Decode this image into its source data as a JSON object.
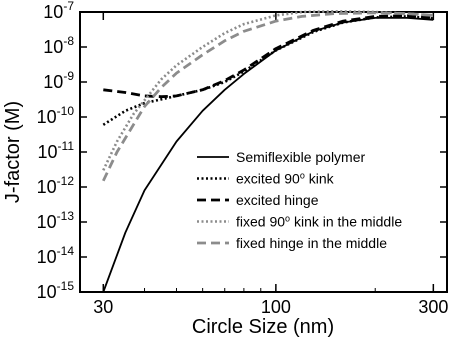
{
  "chart_data": {
    "type": "line",
    "xlabel": "Circle Size (nm)",
    "ylabel": "J-factor (M)",
    "xscale": "log",
    "yscale": "log",
    "xlim": [
      25.5,
      330
    ],
    "ylim": [
      1e-15,
      1e-07
    ],
    "x_ticks": [
      {
        "value": 30,
        "label": "30"
      },
      {
        "value": 100,
        "label": "100"
      },
      {
        "value": 300,
        "label": "300"
      }
    ],
    "y_ticks": [
      {
        "value": 1e-15,
        "base": "10",
        "exp": "-15"
      },
      {
        "value": 1e-14,
        "base": "10",
        "exp": "-14"
      },
      {
        "value": 1e-13,
        "base": "10",
        "exp": "-13"
      },
      {
        "value": 1e-12,
        "base": "10",
        "exp": "-12"
      },
      {
        "value": 1e-11,
        "base": "10",
        "exp": "-11"
      },
      {
        "value": 1e-10,
        "base": "10",
        "exp": "-10"
      },
      {
        "value": 1e-09,
        "base": "10",
        "exp": "-9"
      },
      {
        "value": 1e-08,
        "base": "10",
        "exp": "-8"
      },
      {
        "value": 1e-07,
        "base": "10",
        "exp": "-7"
      }
    ],
    "grid": false,
    "legend_position": "lower-right",
    "series": [
      {
        "name": "Semiflexible polymer",
        "color": "#000000",
        "dash": "solid",
        "x": [
          30,
          35,
          40,
          50,
          60,
          70,
          80,
          100,
          130,
          160,
          200,
          250,
          300
        ],
        "y": [
          1e-15,
          5e-14,
          8e-13,
          2e-11,
          1.5e-10,
          6e-10,
          1.7e-09,
          8e-09,
          2.8e-08,
          5e-08,
          6.8e-08,
          6.8e-08,
          6e-08
        ]
      },
      {
        "name": "excited 90° kink",
        "color": "#000000",
        "dash": "dotted",
        "x": [
          30,
          35,
          40,
          45,
          50,
          60,
          70,
          80,
          100,
          130,
          160,
          200,
          250,
          300
        ],
        "y": [
          6e-11,
          1.5e-10,
          2.5e-10,
          3.2e-10,
          4e-10,
          6e-10,
          1e-09,
          2e-09,
          8e-09,
          2.7e-08,
          5e-08,
          7e-08,
          7.5e-08,
          6.5e-08
        ]
      },
      {
        "name": "excited hinge",
        "color": "#000000",
        "dash": "dashed",
        "x": [
          30,
          35,
          40,
          45,
          50,
          60,
          70,
          80,
          100,
          130,
          160,
          200,
          250,
          300
        ],
        "y": [
          6e-10,
          5e-10,
          4e-10,
          3.8e-10,
          4e-10,
          6e-10,
          1.1e-09,
          2.2e-09,
          9e-09,
          3e-08,
          5.5e-08,
          7.5e-08,
          7.8e-08,
          6.8e-08
        ]
      },
      {
        "name": "fixed 90° kink in the middle",
        "color": "#8c8c8c",
        "dash": "dotted",
        "x": [
          30,
          33,
          37,
          40,
          45,
          50,
          60,
          70,
          80,
          100,
          120,
          150,
          200,
          250,
          300
        ],
        "y": [
          3e-12,
          2e-11,
          1.2e-10,
          3e-10,
          1.2e-09,
          3e-09,
          1e-08,
          2.5e-08,
          4.5e-08,
          8e-08,
          1e-07,
          1.05e-07,
          1e-07,
          9e-08,
          8e-08
        ]
      },
      {
        "name": "fixed hinge in the middle",
        "color": "#8c8c8c",
        "dash": "dashed",
        "x": [
          30,
          33,
          37,
          40,
          45,
          50,
          60,
          70,
          80,
          100,
          120,
          150,
          200,
          250,
          300
        ],
        "y": [
          1.5e-12,
          1e-11,
          6e-11,
          2e-10,
          7e-10,
          1.8e-09,
          6e-09,
          1.5e-08,
          2.8e-08,
          5.5e-08,
          7.5e-08,
          9e-08,
          9.5e-08,
          9e-08,
          8e-08
        ]
      }
    ]
  }
}
